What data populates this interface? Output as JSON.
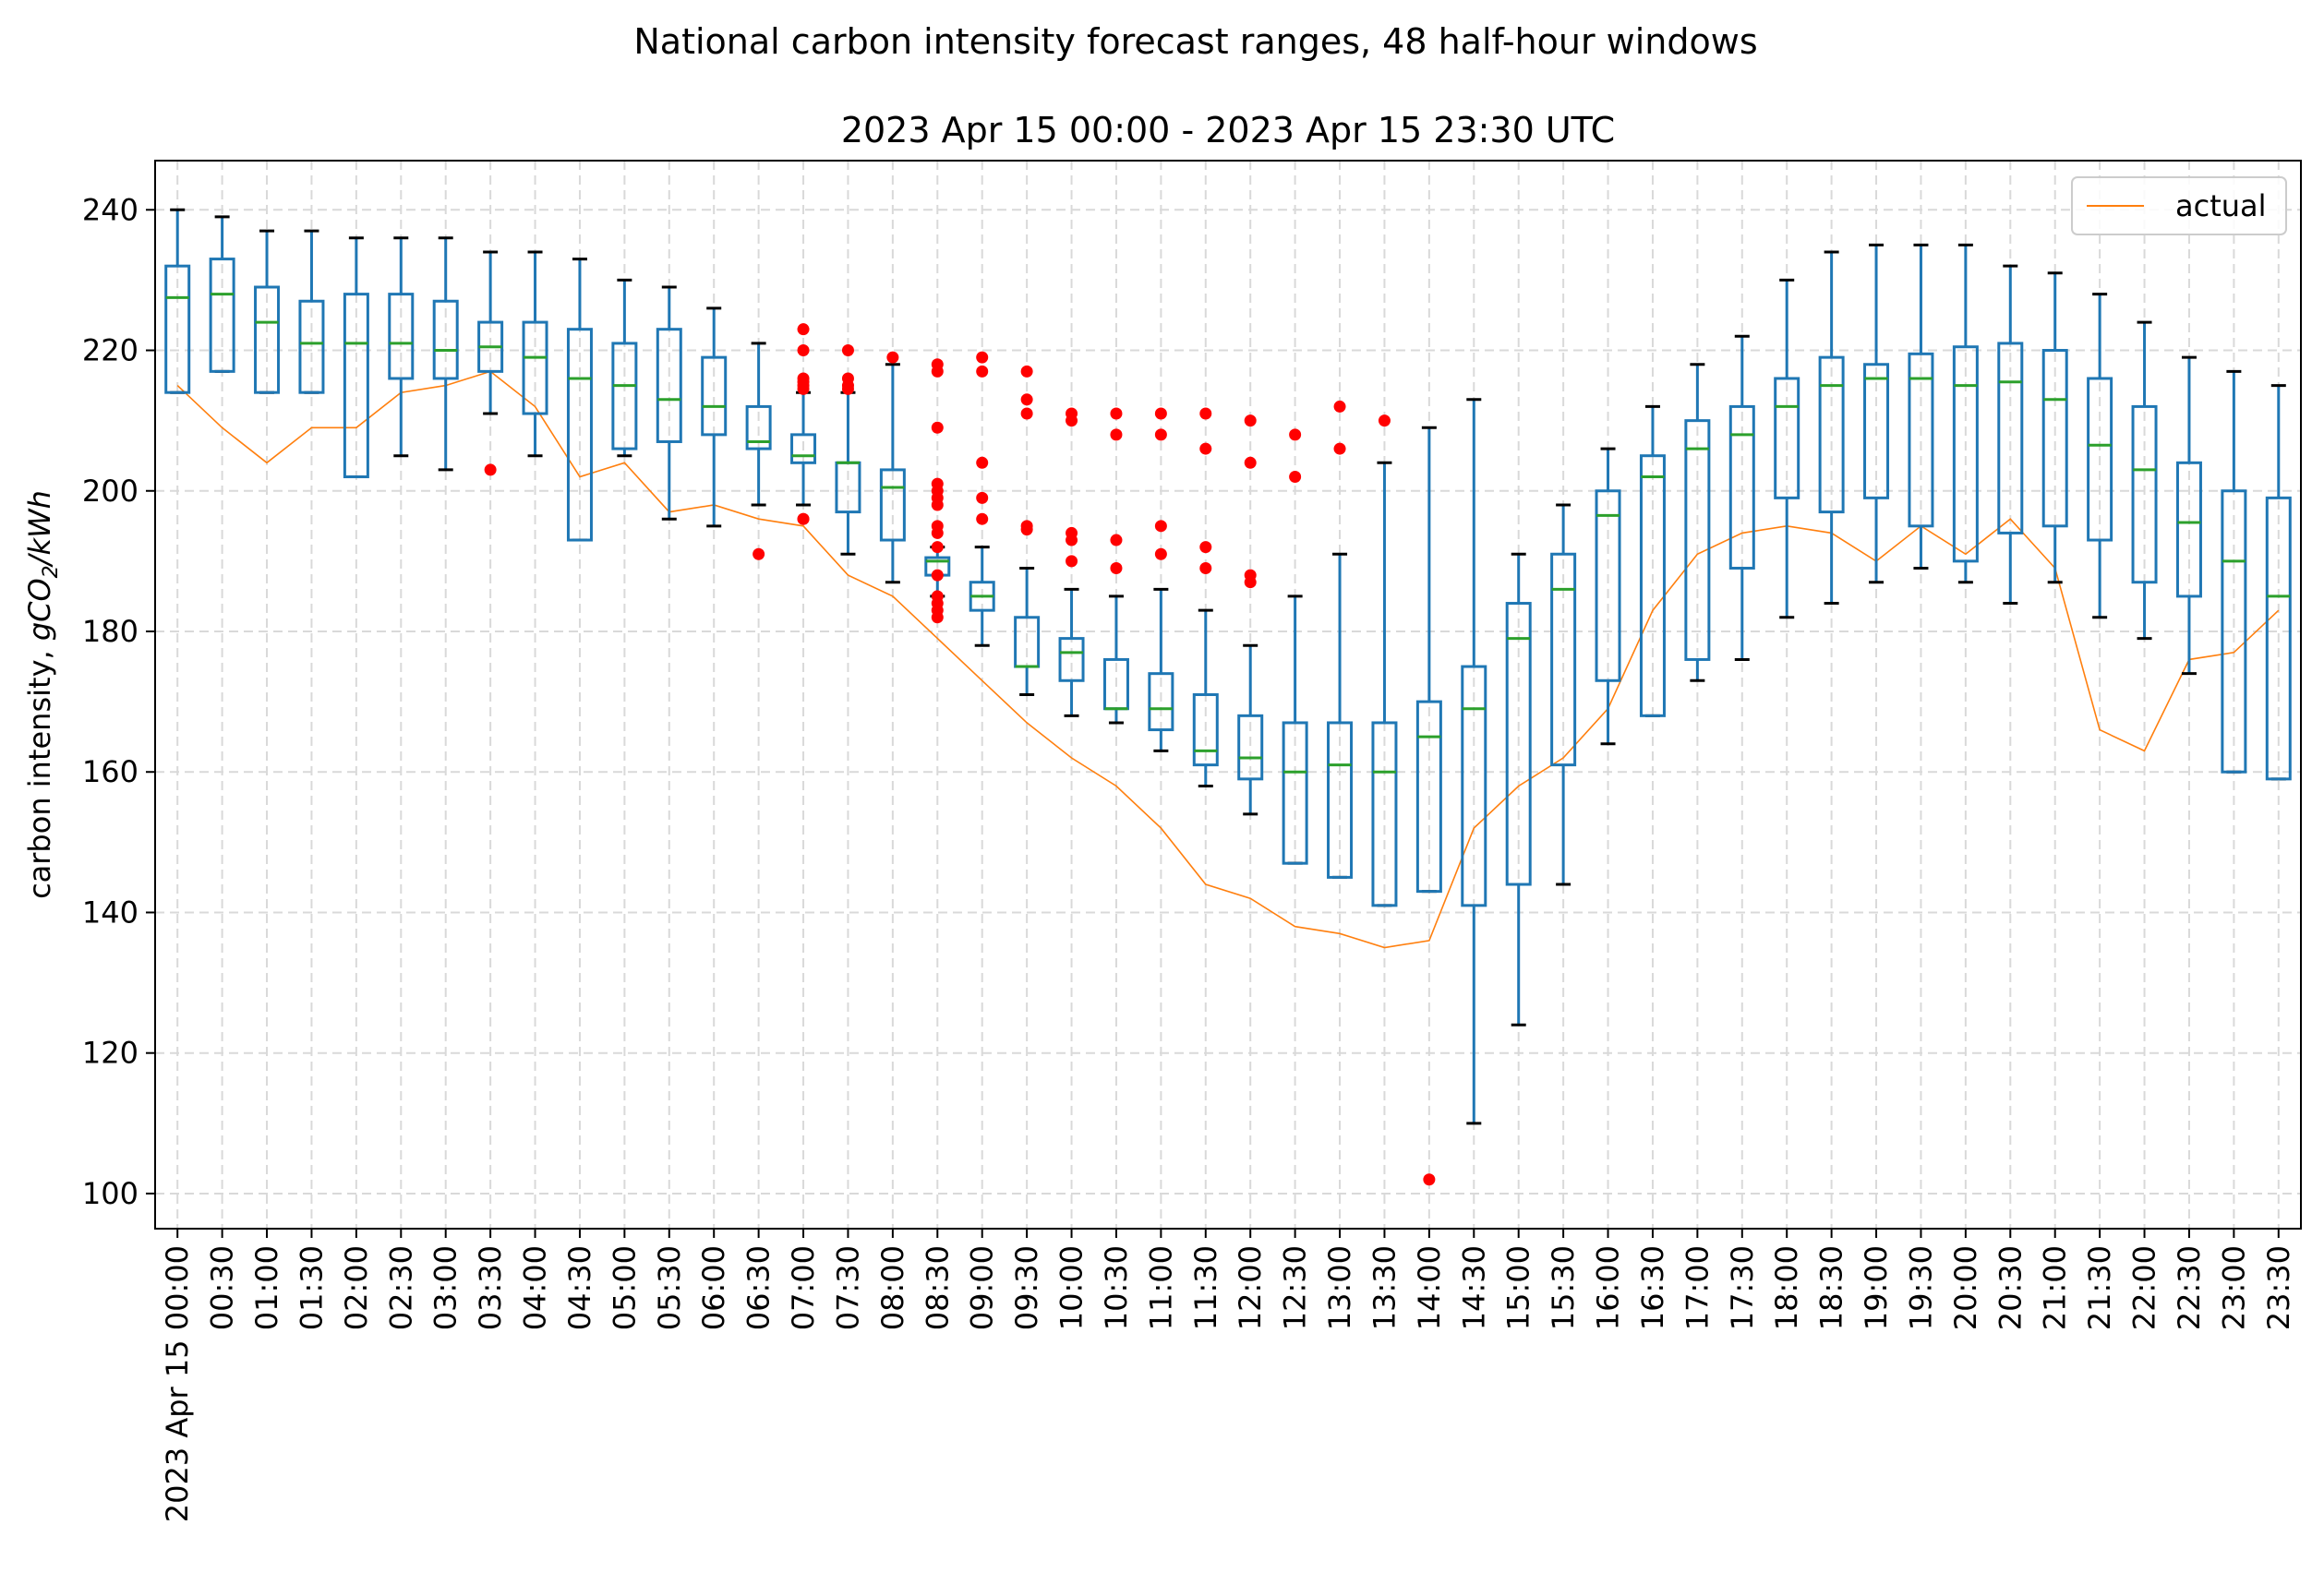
{
  "chart_data": {
    "type": "box",
    "suptitle": "National carbon intensity forecast ranges, 48 half-hour windows",
    "title": "2023 Apr 15 00:00 - 2023 Apr 15 23:30 UTC",
    "xlabel": "",
    "ylabel_prefix": "carbon intensity, ",
    "ylabel_unit": {
      "g": "g",
      "co": "CO",
      "sub": "2",
      "per": "/kWh"
    },
    "ylim": [
      95,
      247
    ],
    "yticks": [
      100,
      120,
      140,
      160,
      180,
      200,
      220,
      240
    ],
    "grid": true,
    "legend": {
      "position": "top-right",
      "entries": [
        "actual"
      ]
    },
    "colors": {
      "box": "#1f77b4",
      "median": "#2ca02c",
      "actual": "#ff7f0e",
      "outlier": "#ff0000",
      "grid": "#d9d9d9"
    },
    "categories": [
      "2023 Apr 15 00:00",
      "00:30",
      "01:00",
      "01:30",
      "02:00",
      "02:30",
      "03:00",
      "03:30",
      "04:00",
      "04:30",
      "05:00",
      "05:30",
      "06:00",
      "06:30",
      "07:00",
      "07:30",
      "08:00",
      "08:30",
      "09:00",
      "09:30",
      "10:00",
      "10:30",
      "11:00",
      "11:30",
      "12:00",
      "12:30",
      "13:00",
      "13:30",
      "14:00",
      "14:30",
      "15:00",
      "15:30",
      "16:00",
      "16:30",
      "17:00",
      "17:30",
      "18:00",
      "18:30",
      "19:00",
      "19:30",
      "20:00",
      "20:30",
      "21:00",
      "21:30",
      "22:00",
      "22:30",
      "23:00",
      "23:30"
    ],
    "boxes": [
      {
        "whislo": 214,
        "q1": 214,
        "med": 227.5,
        "q3": 232,
        "whishi": 240,
        "fliers": []
      },
      {
        "whislo": 217,
        "q1": 217,
        "med": 228,
        "q3": 233,
        "whishi": 239,
        "fliers": []
      },
      {
        "whislo": 214,
        "q1": 214,
        "med": 224,
        "q3": 229,
        "whishi": 237,
        "fliers": []
      },
      {
        "whislo": 214,
        "q1": 214,
        "med": 221,
        "q3": 227,
        "whishi": 237,
        "fliers": []
      },
      {
        "whislo": 202,
        "q1": 202,
        "med": 221,
        "q3": 228,
        "whishi": 236,
        "fliers": []
      },
      {
        "whislo": 205,
        "q1": 216,
        "med": 221,
        "q3": 228,
        "whishi": 236,
        "fliers": []
      },
      {
        "whislo": 203,
        "q1": 216,
        "med": 220,
        "q3": 227,
        "whishi": 236,
        "fliers": []
      },
      {
        "whislo": 211,
        "q1": 217,
        "med": 220.5,
        "q3": 224,
        "whishi": 234,
        "fliers": [
          203
        ]
      },
      {
        "whislo": 205,
        "q1": 211,
        "med": 219,
        "q3": 224,
        "whishi": 234,
        "fliers": []
      },
      {
        "whislo": 193,
        "q1": 193,
        "med": 216,
        "q3": 223,
        "whishi": 233,
        "fliers": []
      },
      {
        "whislo": 205,
        "q1": 206,
        "med": 215,
        "q3": 221,
        "whishi": 230,
        "fliers": []
      },
      {
        "whislo": 196,
        "q1": 207,
        "med": 213,
        "q3": 223,
        "whishi": 229,
        "fliers": []
      },
      {
        "whislo": 195,
        "q1": 208,
        "med": 212,
        "q3": 219,
        "whishi": 226,
        "fliers": []
      },
      {
        "whislo": 198,
        "q1": 206,
        "med": 207,
        "q3": 212,
        "whishi": 221,
        "fliers": [
          191
        ]
      },
      {
        "whislo": 198,
        "q1": 204,
        "med": 205,
        "q3": 208,
        "whishi": 214,
        "fliers": [
          196,
          196,
          214.5,
          215,
          215.5,
          216,
          220,
          223
        ]
      },
      {
        "whislo": 191,
        "q1": 197,
        "med": 204,
        "q3": 204,
        "whishi": 214,
        "fliers": [
          214.5,
          215,
          216,
          220
        ]
      },
      {
        "whislo": 187,
        "q1": 193,
        "med": 200.5,
        "q3": 203,
        "whishi": 218,
        "fliers": [
          219
        ]
      },
      {
        "whislo": 185,
        "q1": 188,
        "med": 190,
        "q3": 190.5,
        "whishi": 192,
        "fliers": [
          182,
          183,
          184,
          185,
          188,
          192,
          194,
          195,
          198,
          199,
          200,
          201,
          209,
          217,
          218
        ]
      },
      {
        "whislo": 178,
        "q1": 183,
        "med": 185,
        "q3": 187,
        "whishi": 192,
        "fliers": [
          196,
          199,
          204,
          217,
          219
        ]
      },
      {
        "whislo": 171,
        "q1": 175,
        "med": 175,
        "q3": 182,
        "whishi": 189,
        "fliers": [
          194.5,
          195,
          211,
          213,
          217
        ]
      },
      {
        "whislo": 168,
        "q1": 173,
        "med": 177,
        "q3": 179,
        "whishi": 186,
        "fliers": [
          190,
          193,
          194,
          210,
          211
        ]
      },
      {
        "whislo": 167,
        "q1": 169,
        "med": 169,
        "q3": 176,
        "whishi": 185,
        "fliers": [
          189,
          193,
          208,
          211
        ]
      },
      {
        "whislo": 163,
        "q1": 166,
        "med": 169,
        "q3": 174,
        "whishi": 186,
        "fliers": [
          191,
          195,
          208,
          211
        ]
      },
      {
        "whislo": 158,
        "q1": 161,
        "med": 163,
        "q3": 171,
        "whishi": 183,
        "fliers": [
          189,
          192,
          206,
          211
        ]
      },
      {
        "whislo": 154,
        "q1": 159,
        "med": 162,
        "q3": 168,
        "whishi": 178,
        "fliers": [
          187,
          188,
          204,
          210
        ]
      },
      {
        "whislo": 147,
        "q1": 147,
        "med": 160,
        "q3": 167,
        "whishi": 185,
        "fliers": [
          202,
          208
        ]
      },
      {
        "whislo": 145,
        "q1": 145,
        "med": 161,
        "q3": 167,
        "whishi": 191,
        "fliers": [
          206,
          212
        ]
      },
      {
        "whislo": 141,
        "q1": 141,
        "med": 160,
        "q3": 167,
        "whishi": 204,
        "fliers": [
          210
        ]
      },
      {
        "whislo": 143,
        "q1": 143,
        "med": 165,
        "q3": 170,
        "whishi": 209,
        "fliers": [
          102
        ]
      },
      {
        "whislo": 110,
        "q1": 141,
        "med": 169,
        "q3": 175,
        "whishi": 213,
        "fliers": []
      },
      {
        "whislo": 124,
        "q1": 144,
        "med": 179,
        "q3": 184,
        "whishi": 191,
        "fliers": []
      },
      {
        "whislo": 144,
        "q1": 161,
        "med": 186,
        "q3": 191,
        "whishi": 198,
        "fliers": []
      },
      {
        "whislo": 164,
        "q1": 173,
        "med": 196.5,
        "q3": 200,
        "whishi": 206,
        "fliers": []
      },
      {
        "whislo": 168,
        "q1": 168,
        "med": 202,
        "q3": 205,
        "whishi": 212,
        "fliers": []
      },
      {
        "whislo": 173,
        "q1": 176,
        "med": 206,
        "q3": 210,
        "whishi": 218,
        "fliers": []
      },
      {
        "whislo": 176,
        "q1": 189,
        "med": 208,
        "q3": 212,
        "whishi": 222,
        "fliers": []
      },
      {
        "whislo": 182,
        "q1": 199,
        "med": 212,
        "q3": 216,
        "whishi": 230,
        "fliers": []
      },
      {
        "whislo": 184,
        "q1": 197,
        "med": 215,
        "q3": 219,
        "whishi": 234,
        "fliers": []
      },
      {
        "whislo": 187,
        "q1": 199,
        "med": 216,
        "q3": 218,
        "whishi": 235,
        "fliers": []
      },
      {
        "whislo": 189,
        "q1": 195,
        "med": 216,
        "q3": 219.5,
        "whishi": 235,
        "fliers": []
      },
      {
        "whislo": 187,
        "q1": 190,
        "med": 215,
        "q3": 220.5,
        "whishi": 235,
        "fliers": []
      },
      {
        "whislo": 184,
        "q1": 194,
        "med": 215.5,
        "q3": 221,
        "whishi": 232,
        "fliers": []
      },
      {
        "whislo": 187,
        "q1": 195,
        "med": 213,
        "q3": 220,
        "whishi": 231,
        "fliers": []
      },
      {
        "whislo": 182,
        "q1": 193,
        "med": 206.5,
        "q3": 216,
        "whishi": 228,
        "fliers": []
      },
      {
        "whislo": 179,
        "q1": 187,
        "med": 203,
        "q3": 212,
        "whishi": 224,
        "fliers": []
      },
      {
        "whislo": 174,
        "q1": 185,
        "med": 195.5,
        "q3": 204,
        "whishi": 219,
        "fliers": []
      },
      {
        "whislo": 160,
        "q1": 160,
        "med": 190,
        "q3": 200,
        "whishi": 217,
        "fliers": []
      },
      {
        "whislo": 159,
        "q1": 159,
        "med": 185,
        "q3": 199,
        "whishi": 215,
        "fliers": []
      }
    ],
    "actual": {
      "name": "actual",
      "values": [
        215,
        209,
        204,
        209,
        209,
        214,
        215,
        217,
        212,
        202,
        204,
        197,
        198,
        196,
        195,
        188,
        185,
        179,
        173,
        167,
        162,
        158,
        152,
        144,
        142,
        138,
        137,
        135,
        136,
        152,
        158,
        162,
        169,
        183,
        191,
        194,
        195,
        194,
        190,
        195,
        191,
        196,
        189,
        166,
        163,
        176,
        177,
        183
      ]
    }
  }
}
